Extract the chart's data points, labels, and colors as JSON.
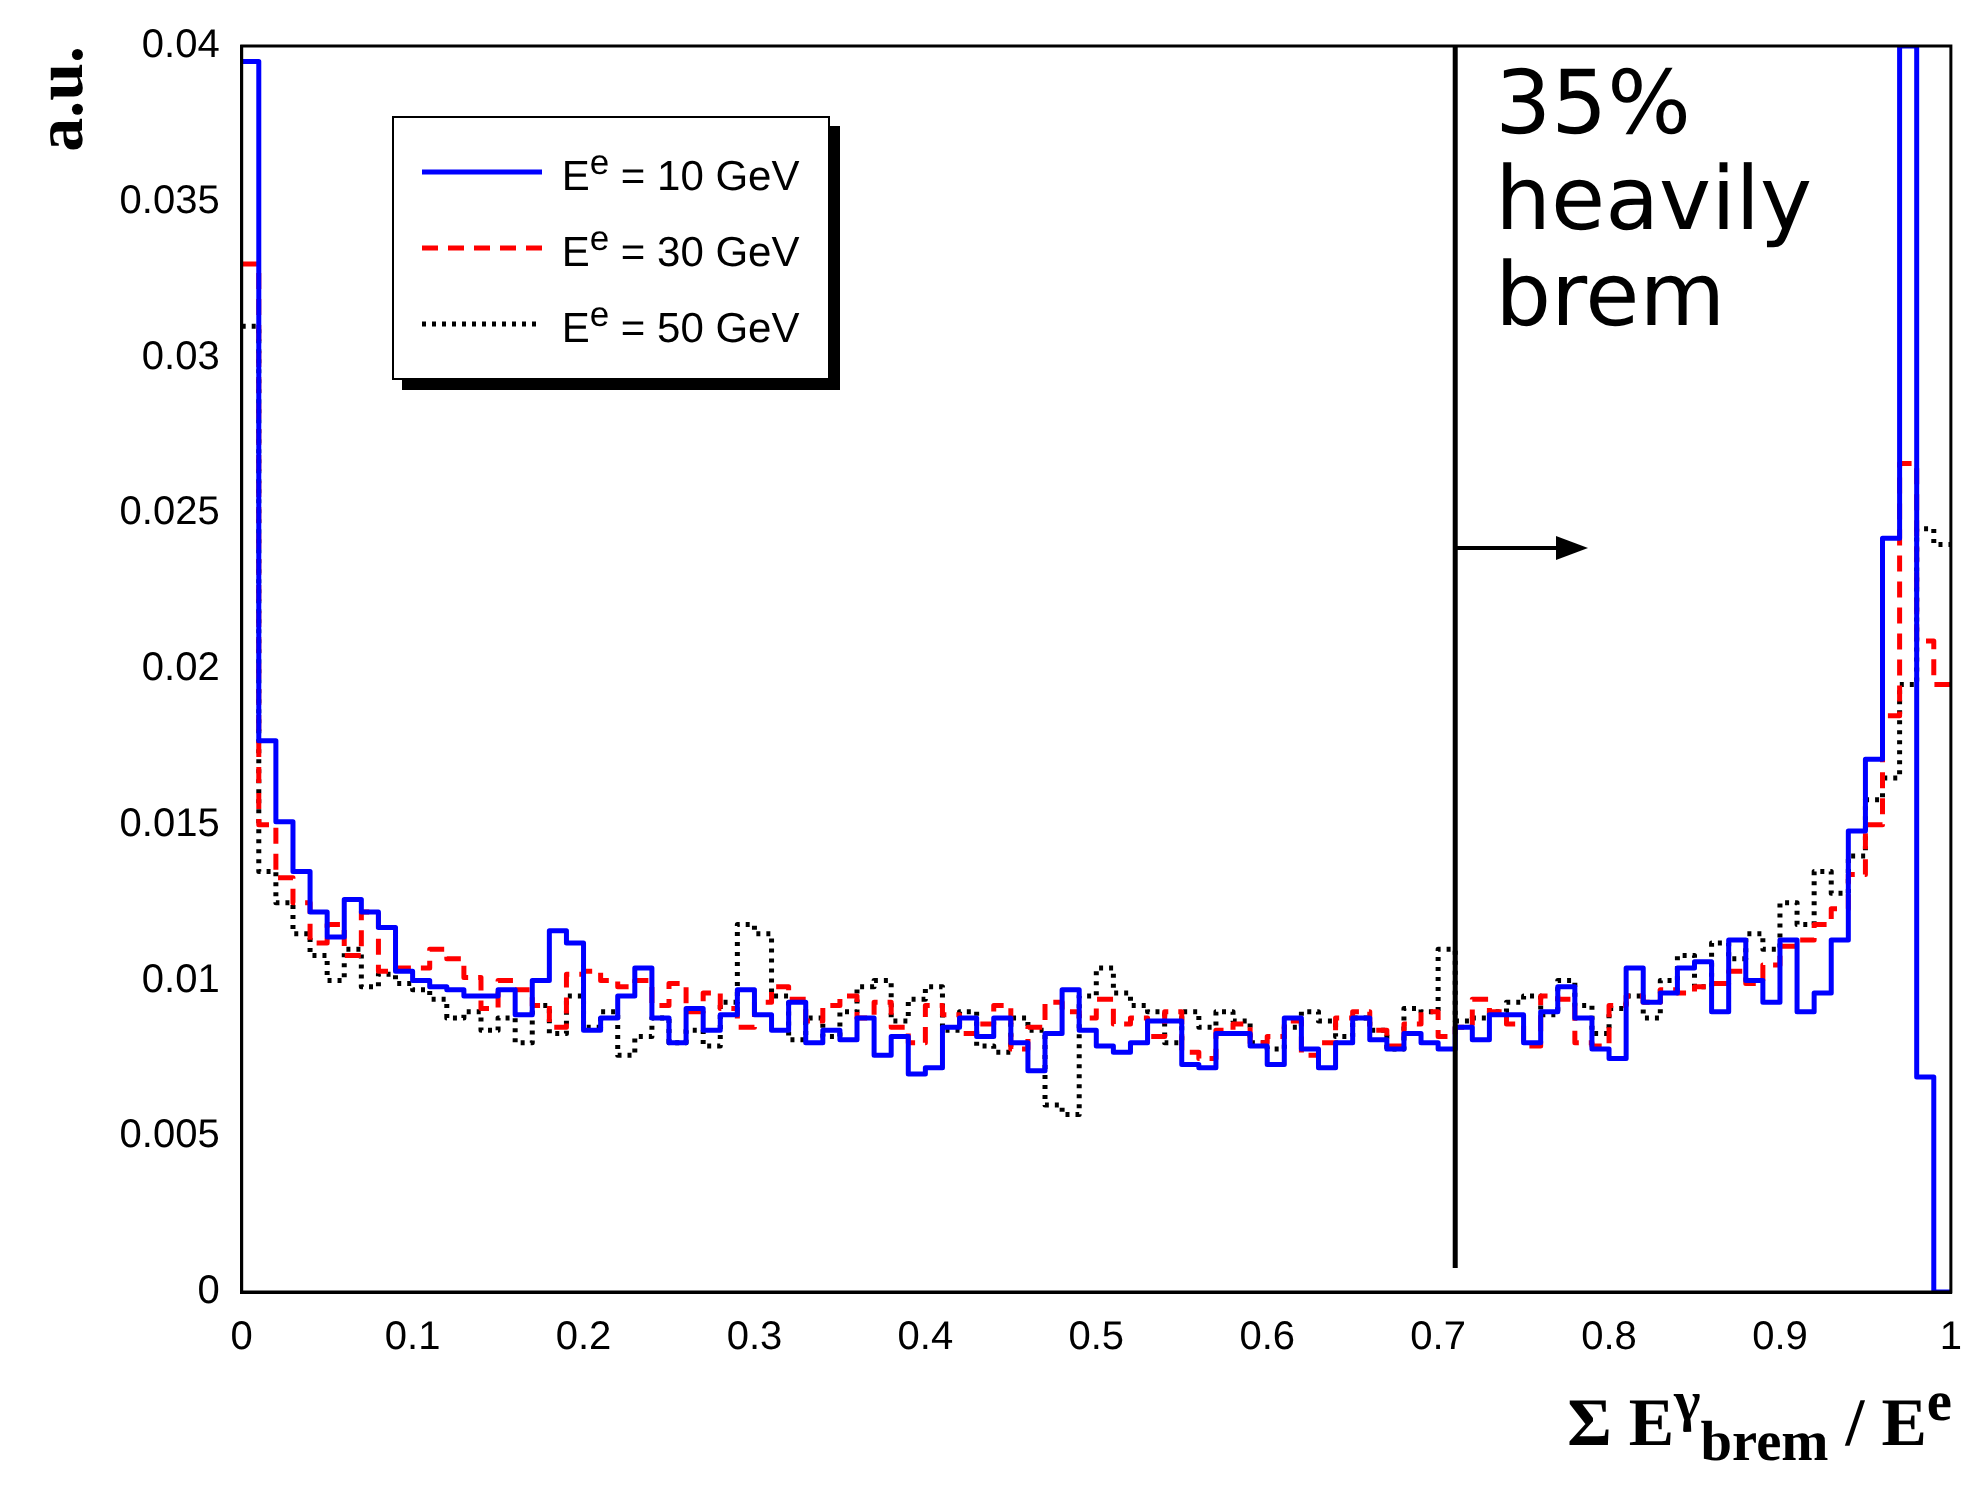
{
  "chart_data": {
    "type": "histogram",
    "xlabel": "Σ E$^{γ}$$_{brem}$ / E$^{e}$",
    "ylabel": "a.u.",
    "bins": [
      0,
      0.01,
      0.02,
      0.03,
      0.04,
      0.05,
      0.06,
      0.07,
      0.08,
      0.09,
      0.1,
      0.11,
      0.12,
      0.13,
      0.14,
      0.15,
      0.16,
      0.17,
      0.18,
      0.19,
      0.2,
      0.21,
      0.22,
      0.23,
      0.24,
      0.25,
      0.26,
      0.27,
      0.28,
      0.29,
      0.3,
      0.31,
      0.32,
      0.33,
      0.34,
      0.35,
      0.36,
      0.37,
      0.38,
      0.39,
      0.4,
      0.41,
      0.42,
      0.43,
      0.44,
      0.45,
      0.46,
      0.47,
      0.48,
      0.49,
      0.5,
      0.51,
      0.52,
      0.53,
      0.54,
      0.55,
      0.56,
      0.57,
      0.58,
      0.59,
      0.6,
      0.61,
      0.62,
      0.63,
      0.64,
      0.65,
      0.66,
      0.67,
      0.68,
      0.69,
      0.7,
      0.71,
      0.72,
      0.73,
      0.74,
      0.75,
      0.76,
      0.77,
      0.78,
      0.79,
      0.8,
      0.81,
      0.82,
      0.83,
      0.84,
      0.85,
      0.86,
      0.87,
      0.88,
      0.89,
      0.9,
      0.91,
      0.92,
      0.93,
      0.94,
      0.95,
      0.96,
      0.97,
      0.98,
      0.99,
      1
    ],
    "series": [
      {
        "name": "E$^{e}$ = 10 GeV",
        "color": "#0000ff",
        "line_style": "solid",
        "values": [
          0.0395,
          0.0177,
          0.0151,
          0.0135,
          0.0122,
          0.0114,
          0.0126,
          0.0122,
          0.0117,
          0.0103,
          0.01,
          0.0098,
          0.0097,
          0.0095,
          0.0095,
          0.0097,
          0.0089,
          0.01,
          0.0116,
          0.0112,
          0.0084,
          0.0088,
          0.0095,
          0.0104,
          0.0088,
          0.008,
          0.0091,
          0.0084,
          0.0089,
          0.0097,
          0.0089,
          0.0084,
          0.0093,
          0.008,
          0.0084,
          0.0081,
          0.0088,
          0.0076,
          0.0082,
          0.007,
          0.0072,
          0.0085,
          0.0088,
          0.0082,
          0.0088,
          0.008,
          0.0071,
          0.0083,
          0.0097,
          0.0084,
          0.0079,
          0.0077,
          0.008,
          0.0087,
          0.0087,
          0.0073,
          0.0072,
          0.0083,
          0.0083,
          0.0079,
          0.0073,
          0.0088,
          0.0078,
          0.0072,
          0.008,
          0.0088,
          0.0081,
          0.0078,
          0.0083,
          0.008,
          0.0078,
          0.0085,
          0.0081,
          0.0089,
          0.0089,
          0.008,
          0.009,
          0.0098,
          0.0088,
          0.0078,
          0.0075,
          0.0104,
          0.0093,
          0.0096,
          0.0104,
          0.0106,
          0.009,
          0.0113,
          0.01,
          0.0093,
          0.0113,
          0.009,
          0.0096,
          0.0113,
          0.0148,
          0.0171,
          0.0242,
          0.04,
          0.0069,
          0
        ]
      },
      {
        "name": "E$^{e}$ = 30 GeV",
        "color": "#ff0000",
        "line_style": "dashed",
        "values": [
          0.033,
          0.015,
          0.0133,
          0.0125,
          0.0112,
          0.0118,
          0.0108,
          0.0122,
          0.0103,
          0.0104,
          0.0104,
          0.011,
          0.0107,
          0.0101,
          0.0091,
          0.01,
          0.0097,
          0.0092,
          0.0085,
          0.0102,
          0.0103,
          0.01,
          0.0098,
          0.01,
          0.0092,
          0.0099,
          0.009,
          0.0096,
          0.0091,
          0.0085,
          0.0093,
          0.0098,
          0.0094,
          0.0087,
          0.0092,
          0.0095,
          0.0088,
          0.0093,
          0.0085,
          0.008,
          0.0092,
          0.0089,
          0.0083,
          0.0086,
          0.0092,
          0.0078,
          0.0085,
          0.0093,
          0.009,
          0.0088,
          0.0094,
          0.0086,
          0.0088,
          0.0082,
          0.009,
          0.0077,
          0.0075,
          0.0084,
          0.0086,
          0.008,
          0.0082,
          0.0087,
          0.0076,
          0.008,
          0.0088,
          0.009,
          0.0084,
          0.0079,
          0.0086,
          0.009,
          0.0082,
          0.0085,
          0.0094,
          0.009,
          0.0086,
          0.0079,
          0.0095,
          0.0094,
          0.008,
          0.0079,
          0.0092,
          0.0095,
          0.0093,
          0.0097,
          0.0096,
          0.0098,
          0.0099,
          0.0103,
          0.0099,
          0.0105,
          0.0111,
          0.0113,
          0.0118,
          0.0123,
          0.0134,
          0.015,
          0.0185,
          0.0266,
          0.0209,
          0.0195
        ]
      },
      {
        "name": "E$^{e}$ = 50 GeV",
        "color": "#000000",
        "line_style": "dotted",
        "values": [
          0.031,
          0.0135,
          0.0125,
          0.0115,
          0.0108,
          0.01,
          0.011,
          0.0098,
          0.0102,
          0.0099,
          0.0097,
          0.0094,
          0.0088,
          0.009,
          0.0084,
          0.0088,
          0.008,
          0.0092,
          0.0083,
          0.0095,
          0.0085,
          0.009,
          0.0076,
          0.0082,
          0.0088,
          0.008,
          0.0084,
          0.0079,
          0.0093,
          0.0118,
          0.0115,
          0.0095,
          0.0081,
          0.0088,
          0.0082,
          0.009,
          0.0098,
          0.01,
          0.0087,
          0.0094,
          0.0098,
          0.0084,
          0.009,
          0.0079,
          0.0077,
          0.0088,
          0.0084,
          0.006,
          0.0057,
          0.0095,
          0.0104,
          0.0096,
          0.0092,
          0.009,
          0.008,
          0.009,
          0.0085,
          0.009,
          0.0087,
          0.008,
          0.0078,
          0.0085,
          0.009,
          0.0087,
          0.0082,
          0.0088,
          0.0084,
          0.0078,
          0.0091,
          0.009,
          0.011,
          0.0087,
          0.0088,
          0.009,
          0.0093,
          0.0095,
          0.0089,
          0.01,
          0.0092,
          0.0083,
          0.0091,
          0.0095,
          0.0088,
          0.01,
          0.0108,
          0.0098,
          0.0112,
          0.0107,
          0.0115,
          0.011,
          0.0125,
          0.0118,
          0.0135,
          0.0128,
          0.014,
          0.0158,
          0.0165,
          0.0195,
          0.0245,
          0.024
        ]
      }
    ],
    "xlim": [
      0,
      1
    ],
    "xticks": [
      0,
      0.1,
      0.2,
      0.3,
      0.4,
      0.5,
      0.6,
      0.7,
      0.8,
      0.9,
      1
    ],
    "ylim": [
      0,
      0.04
    ],
    "yticks": [
      0,
      0.005,
      0.01,
      0.015,
      0.02,
      0.025,
      0.03,
      0.035,
      0.04
    ],
    "ref_lines": [
      {
        "axis": "x",
        "value": 0.71,
        "label": "35% heavily brem",
        "color": "#000000"
      }
    ],
    "grid": false,
    "legend": "top left"
  }
}
